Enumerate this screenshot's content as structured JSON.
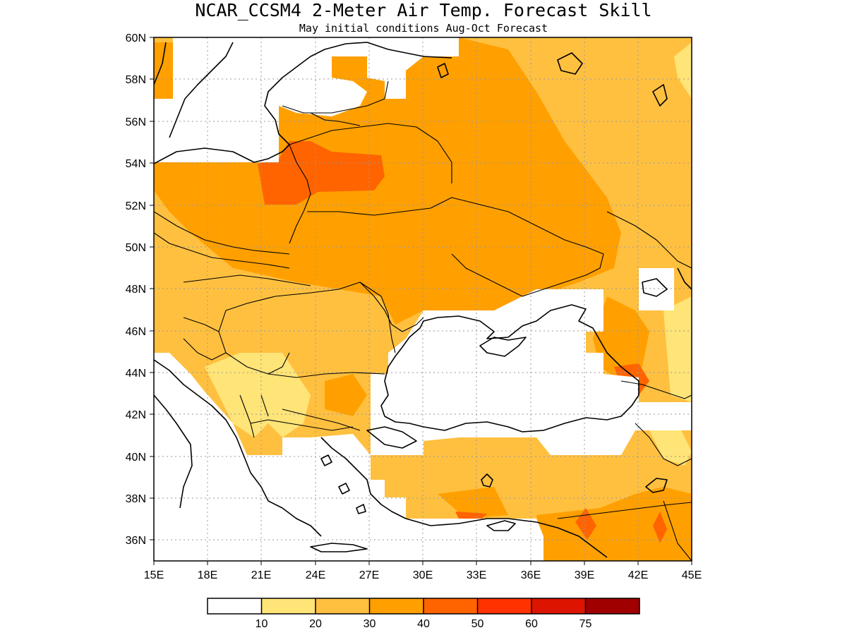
{
  "title": "NCAR_CCSM4 2-Meter Air Temp. Forecast Skill",
  "subtitle": "May initial conditions  Aug-Oct Forecast",
  "map": {
    "lon_range": [
      15,
      45
    ],
    "lat_range": [
      35,
      60
    ],
    "lat_ticks": [
      "60N",
      "58N",
      "56N",
      "54N",
      "52N",
      "50N",
      "48N",
      "46N",
      "44N",
      "42N",
      "40N",
      "38N",
      "36N"
    ],
    "lon_ticks": [
      "15E",
      "18E",
      "21E",
      "24E",
      "27E",
      "30E",
      "33E",
      "36E",
      "39E",
      "42E",
      "45E"
    ],
    "grid": true
  },
  "colorbar": {
    "labels": [
      "10",
      "20",
      "30",
      "40",
      "50",
      "60",
      "75"
    ],
    "colors": [
      "#ffffff",
      "#ffe478",
      "#ffc040",
      "#ffa000",
      "#ff6400",
      "#ff3200",
      "#dd1400",
      "#a00000"
    ]
  }
}
